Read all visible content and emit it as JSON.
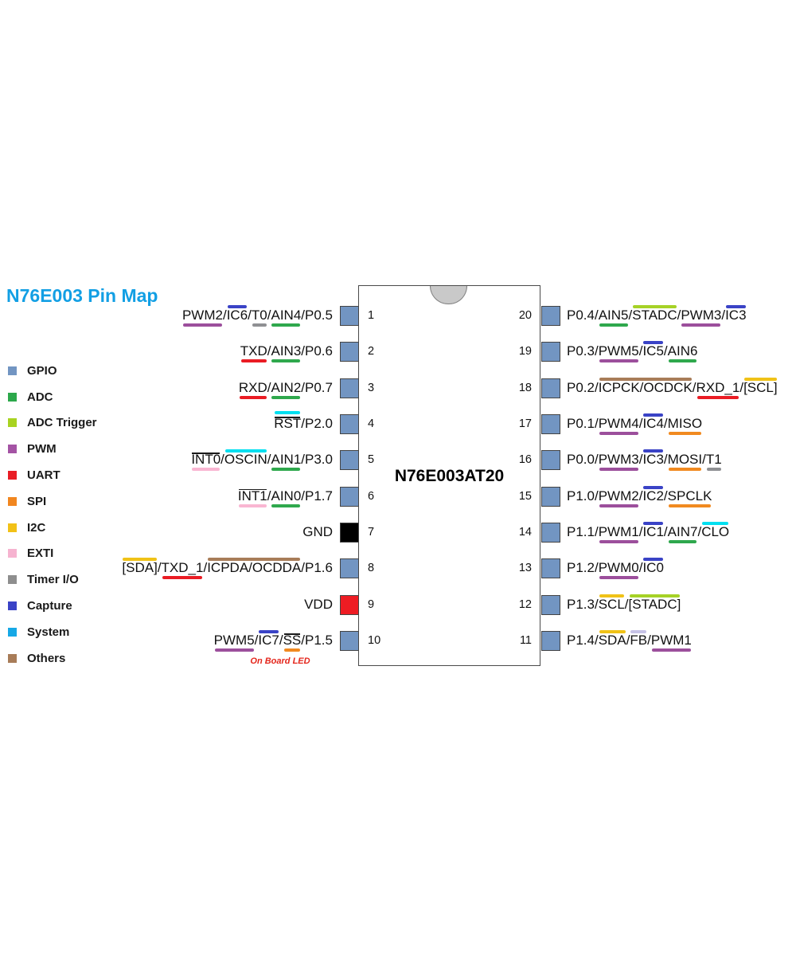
{
  "title": {
    "text": "N76E003 Pin Map",
    "color": "#129fe4"
  },
  "chip": {
    "name": "N76E003AT20",
    "pin_default_color": "#7295c2",
    "body_color": "#ffffff",
    "border_color": "#4a4a4a",
    "notch_color": "#c9c9c9"
  },
  "palette": {
    "gpio": "#7295c2",
    "adc": "#2fa84d",
    "adc_trigger": "#a6d226",
    "pwm": "#9c4f9c",
    "uart": "#ea1c24",
    "spi": "#f18a20",
    "i2c": "#f0c217",
    "exti": "#f9b6d2",
    "timer": "#8f9093",
    "capture": "#3a43c6",
    "system": "#00dff0",
    "others": "#a87c58",
    "fb": "#c6c2e6"
  },
  "legend": {
    "items": [
      {
        "label": "GPIO",
        "swatch": "#7295c2"
      },
      {
        "label": "ADC",
        "swatch": "#2ca84b"
      },
      {
        "label": "ADC Trigger",
        "swatch": "#a8d321"
      },
      {
        "label": "PWM",
        "swatch": "#a453a4"
      },
      {
        "label": "UART",
        "swatch": "#e91d25"
      },
      {
        "label": "SPI",
        "swatch": "#f1861f"
      },
      {
        "label": "I2C",
        "swatch": "#f2c117"
      },
      {
        "label": "EXTI",
        "swatch": "#f6b3d0"
      },
      {
        "label": "Timer I/O",
        "swatch": "#8e8e8e"
      },
      {
        "label": "Capture",
        "swatch": "#3a43c6"
      },
      {
        "label": "System",
        "swatch": "#16a8e6"
      },
      {
        "label": "Others",
        "swatch": "#a87c58"
      }
    ]
  },
  "pins": {
    "left": [
      {
        "num": 1,
        "segments": [
          {
            "t": "PWM2",
            "cat": "pwm",
            "pos": "below"
          },
          {
            "t": "IC6",
            "cat": "capture",
            "pos": "above"
          },
          {
            "t": "T0",
            "cat": "timer",
            "pos": "below"
          },
          {
            "t": "AIN4",
            "cat": "adc",
            "pos": "below"
          },
          {
            "t": "P0.5"
          }
        ]
      },
      {
        "num": 2,
        "segments": [
          {
            "t": "TXD",
            "cat": "uart",
            "pos": "below"
          },
          {
            "t": "AIN3",
            "cat": "adc",
            "pos": "below"
          },
          {
            "t": "P0.6"
          }
        ]
      },
      {
        "num": 3,
        "segments": [
          {
            "t": "RXD",
            "cat": "uart",
            "pos": "below"
          },
          {
            "t": "AIN2",
            "cat": "adc",
            "pos": "below"
          },
          {
            "t": "P0.7"
          }
        ]
      },
      {
        "num": 4,
        "segments": [
          {
            "t": "RST",
            "cat": "system",
            "pos": "above",
            "ov": true
          },
          {
            "t": "P2.0"
          }
        ]
      },
      {
        "num": 5,
        "segments": [
          {
            "t": "INT0",
            "cat": "exti",
            "pos": "below",
            "ov": true
          },
          {
            "t": "OSCIN",
            "cat": "system",
            "pos": "above"
          },
          {
            "t": "AIN1",
            "cat": "adc",
            "pos": "below"
          },
          {
            "t": "P3.0"
          }
        ]
      },
      {
        "num": 6,
        "segments": [
          {
            "t": "INT1",
            "cat": "exti",
            "pos": "below",
            "ov": true
          },
          {
            "t": "AIN0",
            "cat": "adc",
            "pos": "below"
          },
          {
            "t": "P1.7"
          }
        ]
      },
      {
        "num": 7,
        "segments": [
          {
            "t": "GND"
          }
        ],
        "pin_fill": "#000000"
      },
      {
        "num": 8,
        "segments": [
          {
            "t": "[SDA]",
            "cat": "i2c",
            "pos": "above"
          },
          {
            "t": "TXD_1",
            "cat": "uart",
            "pos": "below"
          },
          {
            "t": "ICPDA/OCDDA",
            "cat": "others",
            "pos": "above"
          },
          {
            "t": "P1.6"
          }
        ]
      },
      {
        "num": 9,
        "segments": [
          {
            "t": "VDD"
          }
        ],
        "pin_fill": "#ee1c23"
      },
      {
        "num": 10,
        "segments": [
          {
            "t": "PWM5",
            "cat": "pwm",
            "pos": "below"
          },
          {
            "t": "IC7",
            "cat": "capture",
            "pos": "above"
          },
          {
            "t": "SS",
            "cat": "spi",
            "pos": "below",
            "ov": true
          },
          {
            "t": "P1.5"
          }
        ]
      }
    ],
    "right": [
      {
        "num": 20,
        "segments": [
          {
            "t": "P0.4"
          },
          {
            "t": "AIN5",
            "cat": "adc",
            "pos": "below"
          },
          {
            "t": "STADC",
            "cat": "adc_trigger",
            "pos": "above"
          },
          {
            "t": "PWM3",
            "cat": "pwm",
            "pos": "below"
          },
          {
            "t": "IC3",
            "cat": "capture",
            "pos": "above"
          }
        ]
      },
      {
        "num": 19,
        "segments": [
          {
            "t": "P0.3"
          },
          {
            "t": "PWM5",
            "cat": "pwm",
            "pos": "below"
          },
          {
            "t": "IC5",
            "cat": "capture",
            "pos": "above"
          },
          {
            "t": "AIN6",
            "cat": "adc",
            "pos": "below"
          }
        ]
      },
      {
        "num": 18,
        "segments": [
          {
            "t": "P0.2"
          },
          {
            "t": "ICPCK/OCDCK",
            "cat": "others",
            "pos": "above"
          },
          {
            "t": "RXD_1",
            "cat": "uart",
            "pos": "below"
          },
          {
            "t": "[SCL]",
            "cat": "i2c",
            "pos": "above"
          }
        ]
      },
      {
        "num": 17,
        "segments": [
          {
            "t": "P0.1"
          },
          {
            "t": "PWM4",
            "cat": "pwm",
            "pos": "below"
          },
          {
            "t": "IC4",
            "cat": "capture",
            "pos": "above"
          },
          {
            "t": "MISO",
            "cat": "spi",
            "pos": "below"
          }
        ]
      },
      {
        "num": 16,
        "segments": [
          {
            "t": "P0.0"
          },
          {
            "t": "PWM3",
            "cat": "pwm",
            "pos": "below"
          },
          {
            "t": "IC3",
            "cat": "capture",
            "pos": "above"
          },
          {
            "t": "MOSI",
            "cat": "spi",
            "pos": "below"
          },
          {
            "t": "T1",
            "cat": "timer",
            "pos": "below"
          }
        ]
      },
      {
        "num": 15,
        "segments": [
          {
            "t": "P1.0"
          },
          {
            "t": "PWM2",
            "cat": "pwm",
            "pos": "below"
          },
          {
            "t": "IC2",
            "cat": "capture",
            "pos": "above"
          },
          {
            "t": "SPCLK",
            "cat": "spi",
            "pos": "below"
          }
        ]
      },
      {
        "num": 14,
        "segments": [
          {
            "t": "P1.1"
          },
          {
            "t": "PWM1",
            "cat": "pwm",
            "pos": "below"
          },
          {
            "t": "IC1",
            "cat": "capture",
            "pos": "above"
          },
          {
            "t": "AIN7",
            "cat": "adc",
            "pos": "below"
          },
          {
            "t": "CLO",
            "cat": "system",
            "pos": "above"
          }
        ]
      },
      {
        "num": 13,
        "segments": [
          {
            "t": "P1.2"
          },
          {
            "t": "PWM0",
            "cat": "pwm",
            "pos": "below"
          },
          {
            "t": "IC0",
            "cat": "capture",
            "pos": "above"
          }
        ]
      },
      {
        "num": 12,
        "segments": [
          {
            "t": "P1.3"
          },
          {
            "t": "SCL",
            "cat": "i2c",
            "pos": "above"
          },
          {
            "t": "[STADC]",
            "cat": "adc_trigger",
            "pos": "above"
          }
        ]
      },
      {
        "num": 11,
        "segments": [
          {
            "t": "P1.4"
          },
          {
            "t": "SDA",
            "cat": "i2c",
            "pos": "above"
          },
          {
            "t": "FB",
            "cat": "fb",
            "pos": "above"
          },
          {
            "t": "PWM1",
            "cat": "pwm",
            "pos": "below"
          }
        ]
      }
    ]
  },
  "note": {
    "text": "On Board LED",
    "color": "#e4261c"
  }
}
